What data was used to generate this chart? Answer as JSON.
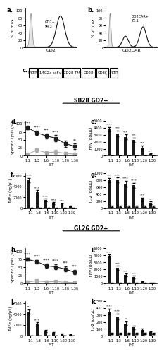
{
  "panel_a": {
    "label": "a.",
    "xlabel": "GD2",
    "ylabel": "% of max",
    "annotation": "GD2+\n94.3"
  },
  "panel_b": {
    "label": "b.",
    "xlabel": "GD2CAR",
    "ylabel": "% of max",
    "annotation": "GD2CAR+\n72.1"
  },
  "panel_c": {
    "label": "c.",
    "boxes": [
      "5'LTR",
      "14G2a scFv",
      "CD28 TM",
      "CD28",
      "CD3ζ",
      "3'LTR"
    ]
  },
  "sb28_title": "SB28 GD2+",
  "gl26_title": "GL26 GD2+",
  "et_labels": [
    "1:1",
    "1:3",
    "1:6",
    "1:10",
    "1:20",
    "1:30"
  ],
  "panel_d": {
    "label": "d.",
    "ylabel": "Specific Lysis (%)",
    "xlabel": "E:T",
    "car_values": [
      88,
      72,
      62,
      55,
      38,
      30
    ],
    "car_err": [
      5,
      6,
      8,
      9,
      10,
      8
    ],
    "mock_values": [
      5,
      18,
      10,
      12,
      8,
      5
    ],
    "mock_err": [
      3,
      5,
      4,
      6,
      4,
      3
    ],
    "ylim": [
      0,
      110
    ],
    "stars": [
      "****",
      "****",
      "***",
      "****",
      null,
      "**"
    ]
  },
  "panel_e": {
    "label": "e.",
    "ylabel": "IFNγ (pg/µL)",
    "xlabel": "E:T",
    "car_values": [
      3800,
      3200,
      2700,
      2300,
      1200,
      200
    ],
    "car_err": [
      300,
      400,
      350,
      300,
      250,
      100
    ],
    "mock_values": [
      50,
      50,
      50,
      50,
      50,
      50
    ],
    "mock_err": [
      20,
      20,
      20,
      20,
      20,
      20
    ],
    "ylim": [
      0,
      5000
    ],
    "stars": [
      "****",
      "***",
      "***",
      "***",
      "***",
      "***"
    ]
  },
  "panel_f": {
    "label": "f.",
    "ylabel": "TNFα (pg/µL)",
    "xlabel": "E:T",
    "car_values": [
      5200,
      3000,
      1500,
      900,
      700,
      400
    ],
    "car_err": [
      400,
      350,
      250,
      200,
      180,
      150
    ],
    "mock_values": [
      50,
      50,
      50,
      50,
      50,
      50
    ],
    "mock_err": [
      20,
      20,
      20,
      20,
      20,
      20
    ],
    "ylim": [
      0,
      6500
    ],
    "stars": [
      "****",
      "****",
      "****",
      "****",
      "***",
      null
    ]
  },
  "panel_g": {
    "label": "g.",
    "ylabel": "IL-2 (pg/µL)",
    "xlabel": "E:T",
    "car_values": [
      800,
      800,
      700,
      650,
      250,
      150
    ],
    "car_err": [
      60,
      70,
      80,
      70,
      50,
      40
    ],
    "mock_values": [
      50,
      50,
      50,
      50,
      50,
      50
    ],
    "mock_err": [
      20,
      20,
      20,
      20,
      20,
      20
    ],
    "ylim": [
      0,
      1000
    ],
    "stars": [
      "***",
      "****",
      "****",
      "****",
      "***",
      "**"
    ]
  },
  "panel_h": {
    "label": "h.",
    "ylabel": "Specific Lysis (%)",
    "xlabel": "E:T",
    "car_values": [
      75,
      68,
      55,
      52,
      45,
      35
    ],
    "car_err": [
      5,
      6,
      7,
      8,
      8,
      7
    ],
    "mock_values": [
      5,
      8,
      5,
      6,
      4,
      3
    ],
    "mock_err": [
      3,
      4,
      3,
      4,
      3,
      2
    ],
    "ylim": [
      0,
      110
    ],
    "stars": [
      "****",
      "****",
      "****",
      "****",
      "***",
      "***"
    ]
  },
  "panel_i": {
    "label": "i.",
    "ylabel": "IFNγ (pg/µL)",
    "xlabel": "E:T",
    "car_values": [
      3800,
      2200,
      1200,
      900,
      200,
      100
    ],
    "car_err": [
      300,
      300,
      200,
      200,
      100,
      50
    ],
    "mock_values": [
      50,
      50,
      50,
      50,
      50,
      50
    ],
    "mock_err": [
      20,
      20,
      20,
      20,
      20,
      20
    ],
    "ylim": [
      0,
      5000
    ],
    "stars": [
      "****",
      "***",
      "***",
      "***",
      null,
      null
    ]
  },
  "panel_j": {
    "label": "j.",
    "ylabel": "TNFα (pg/µL)",
    "xlabel": "E:T",
    "car_values": [
      4500,
      2200,
      900,
      600,
      300,
      200
    ],
    "car_err": [
      400,
      300,
      200,
      150,
      100,
      80
    ],
    "mock_values": [
      50,
      50,
      50,
      50,
      50,
      50
    ],
    "mock_err": [
      20,
      20,
      20,
      20,
      20,
      20
    ],
    "ylim": [
      0,
      6500
    ],
    "stars": [
      "***",
      "****",
      null,
      null,
      null,
      null
    ]
  },
  "panel_k": {
    "label": "k.",
    "ylabel": "IL-2 (pg/µL)",
    "xlabel": "E:T",
    "car_values": [
      350,
      280,
      180,
      120,
      80,
      50
    ],
    "car_err": [
      40,
      40,
      30,
      25,
      20,
      15
    ],
    "mock_values": [
      30,
      30,
      30,
      30,
      30,
      30
    ],
    "mock_err": [
      10,
      10,
      10,
      10,
      10,
      10
    ],
    "ylim": [
      0,
      500
    ],
    "stars": [
      "****",
      "****",
      "*",
      null,
      null,
      null
    ]
  },
  "car_color": "#1a1a1a",
  "mock_color": "#aaaaaa",
  "background": "#ffffff"
}
